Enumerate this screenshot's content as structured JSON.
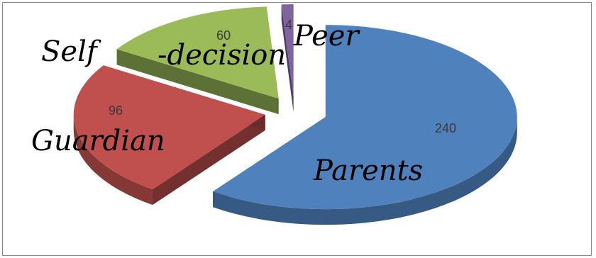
{
  "chart_data": {
    "type": "pie",
    "style": "3d-exploded",
    "categories": [
      "Parents",
      "Guardian",
      "Self-decision",
      "Peer"
    ],
    "values": [
      240,
      96,
      60,
      4
    ],
    "value_labels": [
      "240",
      "96",
      "60",
      "4"
    ],
    "colors": [
      "#4f81bd",
      "#c0504d",
      "#9bbb59",
      "#8064a2"
    ],
    "category_labels": {
      "self": "Self",
      "decision": "-decision",
      "peer": "Peer",
      "guardian": "Guardian",
      "parents": "Parents"
    }
  }
}
